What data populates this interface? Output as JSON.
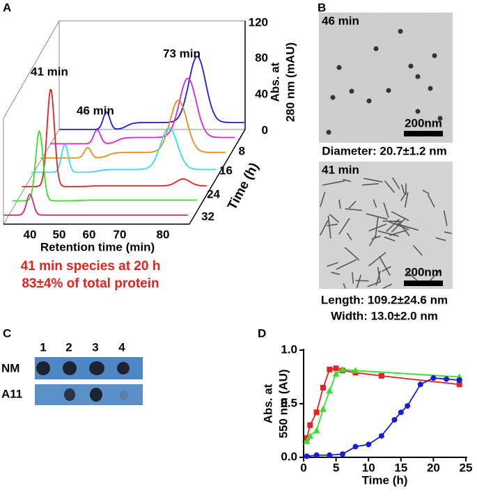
{
  "panels": {
    "a": "A",
    "b": "B",
    "c": "C",
    "d": "D"
  },
  "panel_a": {
    "peak_labels": [
      "41 min",
      "46 min",
      "73 min"
    ],
    "x_label": "Retention time (min)",
    "x_ticks": [
      "40",
      "50",
      "60",
      "70",
      "80"
    ],
    "y_label_1": "Abs. at",
    "y_label_2": "280 nm (mAU)",
    "y_ticks": [
      "0",
      "40",
      "80",
      "120"
    ],
    "z_label": "Time (h)",
    "z_ticks": [
      "8",
      "16",
      "24",
      "32"
    ],
    "note_1": "41 min species at 20 h",
    "note_2": "83±4% of total protein"
  },
  "panel_b": {
    "top_label": "46 min",
    "top_scale": "200nm",
    "top_caption": "Diameter: 20.7±1.2 nm",
    "bottom_label": "41 min",
    "bottom_scale": "200nm",
    "bottom_caption_1": "Length: 109.2±24.6 nm",
    "bottom_caption_2": "Width: 13.0±2.0 nm"
  },
  "panel_c": {
    "lanes": [
      "1",
      "2",
      "3",
      "4"
    ],
    "rows": [
      "NM",
      "A11"
    ]
  },
  "chart_data": {
    "type": "line",
    "xlabel": "Time (h)",
    "ylabel_1": "Abs. at",
    "ylabel_2": "550 nm (AU)",
    "xlim": [
      0,
      25
    ],
    "ylim": [
      0,
      1.0
    ],
    "xticks": [
      0,
      5,
      10,
      15,
      20,
      25
    ],
    "yticks": [
      {
        "value": 0,
        "label": "0.0"
      },
      0.5,
      {
        "value": 1,
        "label": "1.0"
      }
    ],
    "series": [
      {
        "color": "#e8201e",
        "marker": "square",
        "x": [
          0.5,
          1,
          2,
          3,
          4,
          5,
          6,
          8,
          12,
          24
        ],
        "values": [
          0.18,
          0.3,
          0.42,
          0.65,
          0.82,
          0.83,
          0.81,
          0.79,
          0.76,
          0.68
        ]
      },
      {
        "color": "#35e02a",
        "marker": "triangle",
        "x": [
          0.5,
          1,
          2,
          3,
          4,
          5,
          6,
          8,
          24
        ],
        "values": [
          0.15,
          0.2,
          0.25,
          0.45,
          0.62,
          0.78,
          0.82,
          0.81,
          0.75
        ]
      },
      {
        "color": "#1a1adf",
        "marker": "circle",
        "x": [
          0.5,
          2,
          4,
          6,
          8,
          10,
          12,
          14,
          15,
          16,
          18,
          20,
          22,
          24
        ],
        "values": [
          0.01,
          0.02,
          0.02,
          0.03,
          0.1,
          0.12,
          0.2,
          0.35,
          0.42,
          0.48,
          0.68,
          0.74,
          0.73,
          0.72
        ]
      }
    ]
  }
}
